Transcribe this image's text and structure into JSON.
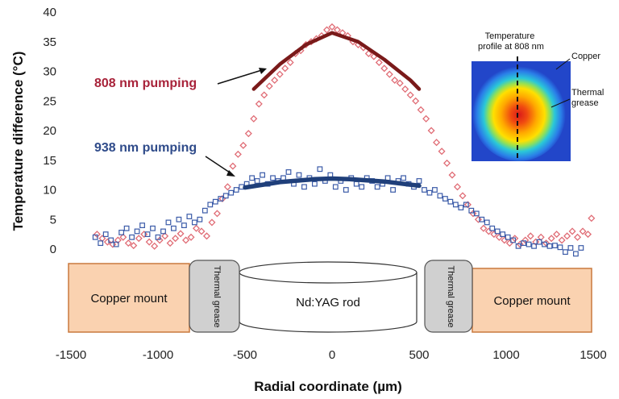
{
  "chart_data": {
    "type": "scatter",
    "xlabel": "Radial coordinate (µm)",
    "ylabel": "Temperature difference (°C)",
    "xlim": [
      -1500,
      1500
    ],
    "ylim": [
      0,
      40
    ],
    "x_ticks": [
      "-1500",
      "-1000",
      "-500",
      "0",
      "500",
      "1000",
      "1500"
    ],
    "y_ticks": [
      "0",
      "5",
      "10",
      "15",
      "20",
      "25",
      "30",
      "35",
      "40"
    ],
    "grid": false,
    "series": [
      {
        "name": "808 nm pumping",
        "marker": "diamond",
        "color": "#e06c75",
        "points": [
          [
            -1350,
            2.5
          ],
          [
            -1320,
            1.8
          ],
          [
            -1290,
            1.2
          ],
          [
            -1260,
            0.8
          ],
          [
            -1230,
            1.5
          ],
          [
            -1200,
            2.0
          ],
          [
            -1170,
            1.0
          ],
          [
            -1140,
            0.6
          ],
          [
            -1110,
            1.8
          ],
          [
            -1080,
            2.5
          ],
          [
            -1050,
            1.2
          ],
          [
            -1020,
            0.5
          ],
          [
            -990,
            1.5
          ],
          [
            -960,
            2.2
          ],
          [
            -930,
            1.0
          ],
          [
            -900,
            1.8
          ],
          [
            -870,
            2.6
          ],
          [
            -840,
            1.5
          ],
          [
            -810,
            2.0
          ],
          [
            -780,
            3.5
          ],
          [
            -750,
            3.0
          ],
          [
            -720,
            2.2
          ],
          [
            -690,
            4.5
          ],
          [
            -660,
            6.0
          ],
          [
            -630,
            8.5
          ],
          [
            -600,
            10.5
          ],
          [
            -570,
            14.0
          ],
          [
            -540,
            16.0
          ],
          [
            -510,
            17.5
          ],
          [
            -480,
            19.5
          ],
          [
            -450,
            22.0
          ],
          [
            -420,
            24.5
          ],
          [
            -390,
            26.0
          ],
          [
            -360,
            27.5
          ],
          [
            -330,
            28.5
          ],
          [
            -300,
            29.5
          ],
          [
            -270,
            30.5
          ],
          [
            -240,
            31.5
          ],
          [
            -210,
            33.0
          ],
          [
            -180,
            33.5
          ],
          [
            -150,
            34.5
          ],
          [
            -120,
            35.0
          ],
          [
            -90,
            35.5
          ],
          [
            -60,
            36.0
          ],
          [
            -30,
            37.0
          ],
          [
            0,
            37.5
          ],
          [
            30,
            37.0
          ],
          [
            60,
            36.5
          ],
          [
            90,
            36.0
          ],
          [
            120,
            35.0
          ],
          [
            150,
            34.5
          ],
          [
            180,
            34.0
          ],
          [
            210,
            33.0
          ],
          [
            240,
            32.5
          ],
          [
            270,
            31.5
          ],
          [
            300,
            30.5
          ],
          [
            330,
            29.5
          ],
          [
            360,
            28.5
          ],
          [
            390,
            28.0
          ],
          [
            420,
            27.0
          ],
          [
            450,
            26.0
          ],
          [
            480,
            25.0
          ],
          [
            510,
            23.5
          ],
          [
            540,
            22.0
          ],
          [
            570,
            20.0
          ],
          [
            600,
            18.0
          ],
          [
            630,
            16.5
          ],
          [
            660,
            14.5
          ],
          [
            690,
            12.5
          ],
          [
            720,
            10.5
          ],
          [
            750,
            9.0
          ],
          [
            780,
            7.5
          ],
          [
            810,
            6.0
          ],
          [
            840,
            5.0
          ],
          [
            870,
            3.5
          ],
          [
            900,
            3.0
          ],
          [
            930,
            2.5
          ],
          [
            960,
            2.0
          ],
          [
            990,
            1.5
          ],
          [
            1020,
            1.0
          ],
          [
            1050,
            1.8
          ],
          [
            1080,
            0.8
          ],
          [
            1110,
            1.5
          ],
          [
            1140,
            2.2
          ],
          [
            1170,
            1.2
          ],
          [
            1200,
            2.0
          ],
          [
            1230,
            1.0
          ],
          [
            1260,
            1.8
          ],
          [
            1290,
            2.5
          ],
          [
            1320,
            1.5
          ],
          [
            1350,
            2.2
          ],
          [
            1380,
            3.0
          ],
          [
            1410,
            2.0
          ],
          [
            1440,
            3.0
          ],
          [
            1470,
            2.5
          ],
          [
            1490,
            5.2
          ]
        ]
      },
      {
        "name": "938 nm pumping",
        "marker": "square",
        "color": "#3b5ba8",
        "points": [
          [
            -1360,
            2.0
          ],
          [
            -1330,
            1.0
          ],
          [
            -1300,
            2.5
          ],
          [
            -1270,
            1.5
          ],
          [
            -1240,
            0.8
          ],
          [
            -1210,
            2.8
          ],
          [
            -1180,
            3.5
          ],
          [
            -1150,
            2.0
          ],
          [
            -1120,
            3.0
          ],
          [
            -1090,
            4.0
          ],
          [
            -1060,
            2.5
          ],
          [
            -1030,
            3.5
          ],
          [
            -1000,
            2.0
          ],
          [
            -970,
            3.0
          ],
          [
            -940,
            4.5
          ],
          [
            -910,
            3.5
          ],
          [
            -880,
            5.0
          ],
          [
            -850,
            4.0
          ],
          [
            -820,
            5.5
          ],
          [
            -790,
            4.5
          ],
          [
            -760,
            5.0
          ],
          [
            -730,
            6.5
          ],
          [
            -700,
            7.5
          ],
          [
            -670,
            8.0
          ],
          [
            -640,
            8.5
          ],
          [
            -610,
            9.0
          ],
          [
            -580,
            9.5
          ],
          [
            -550,
            10.0
          ],
          [
            -520,
            10.5
          ],
          [
            -490,
            11.0
          ],
          [
            -460,
            12.0
          ],
          [
            -430,
            11.5
          ],
          [
            -400,
            12.5
          ],
          [
            -370,
            11.0
          ],
          [
            -340,
            12.0
          ],
          [
            -310,
            11.5
          ],
          [
            -280,
            12.0
          ],
          [
            -250,
            13.0
          ],
          [
            -220,
            11.0
          ],
          [
            -190,
            12.5
          ],
          [
            -160,
            10.5
          ],
          [
            -130,
            12.0
          ],
          [
            -100,
            11.0
          ],
          [
            -70,
            13.5
          ],
          [
            -40,
            11.5
          ],
          [
            -10,
            12.5
          ],
          [
            20,
            10.5
          ],
          [
            50,
            11.5
          ],
          [
            80,
            10.0
          ],
          [
            110,
            12.0
          ],
          [
            140,
            11.0
          ],
          [
            170,
            10.5
          ],
          [
            200,
            12.0
          ],
          [
            230,
            11.5
          ],
          [
            260,
            10.5
          ],
          [
            290,
            11.0
          ],
          [
            320,
            12.0
          ],
          [
            350,
            10.0
          ],
          [
            380,
            11.5
          ],
          [
            410,
            12.0
          ],
          [
            440,
            11.0
          ],
          [
            470,
            10.5
          ],
          [
            500,
            11.5
          ],
          [
            530,
            10.0
          ],
          [
            560,
            9.5
          ],
          [
            590,
            10.0
          ],
          [
            620,
            9.0
          ],
          [
            650,
            8.5
          ],
          [
            680,
            8.0
          ],
          [
            710,
            7.5
          ],
          [
            740,
            7.0
          ],
          [
            770,
            7.5
          ],
          [
            800,
            6.5
          ],
          [
            830,
            6.0
          ],
          [
            860,
            5.0
          ],
          [
            890,
            4.5
          ],
          [
            920,
            3.5
          ],
          [
            950,
            3.0
          ],
          [
            980,
            2.5
          ],
          [
            1010,
            2.0
          ],
          [
            1040,
            1.5
          ],
          [
            1070,
            0.5
          ],
          [
            1100,
            1.0
          ],
          [
            1130,
            0.8
          ],
          [
            1160,
            0.5
          ],
          [
            1190,
            1.2
          ],
          [
            1220,
            0.8
          ],
          [
            1250,
            0.5
          ],
          [
            1280,
            0.6
          ],
          [
            1310,
            0.3
          ],
          [
            1340,
            -0.5
          ],
          [
            1370,
            0.2
          ],
          [
            1400,
            -0.8
          ],
          [
            1430,
            0.2
          ]
        ]
      }
    ],
    "fits": [
      {
        "name": "808 nm fit",
        "color": "#7a1a1a",
        "points": [
          [
            -450,
            27.0
          ],
          [
            -300,
            31.2
          ],
          [
            -150,
            34.5
          ],
          [
            0,
            36.5
          ],
          [
            150,
            35.0
          ],
          [
            300,
            32.0
          ],
          [
            450,
            28.5
          ],
          [
            500,
            27.0
          ]
        ]
      },
      {
        "name": "938 nm fit",
        "color": "#1f3f7a",
        "points": [
          [
            -500,
            10.4
          ],
          [
            -300,
            11.3
          ],
          [
            -100,
            11.8
          ],
          [
            0,
            11.9
          ],
          [
            100,
            11.8
          ],
          [
            300,
            11.4
          ],
          [
            500,
            10.7
          ]
        ]
      }
    ],
    "annotations": [
      {
        "text": "808 nm pumping",
        "color": "#a8233a"
      },
      {
        "text": "938 nm pumping",
        "color": "#2f4b8a"
      }
    ],
    "diagram": {
      "left_block": "Copper mount",
      "left_grease": "Thermal grease",
      "rod": "Nd:YAG rod",
      "right_grease": "Thermal grease",
      "right_block": "Copper mount"
    },
    "inset": {
      "label_profile": "Temperature profile at 808 nm",
      "label_copper": "Copper",
      "label_grease": "Thermal grease"
    }
  }
}
